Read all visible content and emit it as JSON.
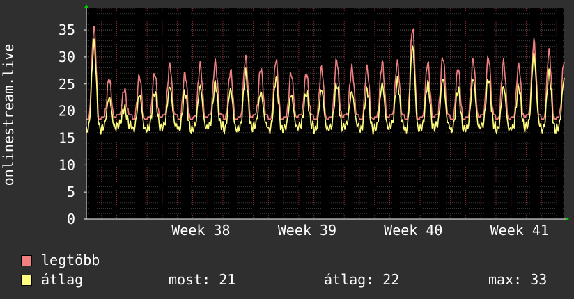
{
  "colors": {
    "background": "#2f2f2f",
    "plot_background": "#000000",
    "grid_major": "#5a5a5a",
    "grid_minor": "#3a3a3a",
    "vertical_grid": "#b03a3a",
    "axis": "#ffffff",
    "arrow": "#00cc00",
    "series_max": "#f08080",
    "series_avg": "#ffff80"
  },
  "legend": {
    "max_label": "legtöbb",
    "avg_label": "átlag"
  },
  "stats": {
    "now": "most: 21",
    "avg": "átlag: 22",
    "max": "max: 33"
  },
  "chart_data": {
    "type": "line",
    "ylabel": "onlinestream.live",
    "ylim": [
      0,
      39
    ],
    "yticks": [
      0,
      5,
      10,
      15,
      20,
      25,
      30,
      35
    ],
    "xlim": [
      0,
      31.5
    ],
    "xticks": [
      {
        "label": "Week 38",
        "x": 7
      },
      {
        "label": "Week 39",
        "x": 14
      },
      {
        "label": "Week 40",
        "x": 21
      },
      {
        "label": "Week 41",
        "x": 28
      }
    ],
    "grid": true,
    "x_unit": "days",
    "day_peaks": [
      {
        "max": 35.5,
        "avg": 32.5
      },
      {
        "max": 26,
        "avg": 22.5
      },
      {
        "max": 24,
        "avg": 20.5
      },
      {
        "max": 26.5,
        "avg": 23
      },
      {
        "max": 27,
        "avg": 23.5
      },
      {
        "max": 28.5,
        "avg": 24.5
      },
      {
        "max": 27,
        "avg": 23.5
      },
      {
        "max": 28.5,
        "avg": 24.5
      },
      {
        "max": 29,
        "avg": 25
      },
      {
        "max": 27.5,
        "avg": 24
      },
      {
        "max": 30,
        "avg": 27
      },
      {
        "max": 28,
        "avg": 23.5
      },
      {
        "max": 29.5,
        "avg": 26
      },
      {
        "max": 27,
        "avg": 23
      },
      {
        "max": 27,
        "avg": 23.5
      },
      {
        "max": 28,
        "avg": 24
      },
      {
        "max": 29.5,
        "avg": 25
      },
      {
        "max": 28,
        "avg": 23.5
      },
      {
        "max": 28,
        "avg": 24
      },
      {
        "max": 29,
        "avg": 25
      },
      {
        "max": 29,
        "avg": 25.5
      },
      {
        "max": 35.5,
        "avg": 32
      },
      {
        "max": 29,
        "avg": 25
      },
      {
        "max": 30,
        "avg": 26
      },
      {
        "max": 28,
        "avg": 24
      },
      {
        "max": 29.5,
        "avg": 26
      },
      {
        "max": 30,
        "avg": 26
      },
      {
        "max": 29,
        "avg": 24.5
      },
      {
        "max": 28.5,
        "avg": 24.5
      },
      {
        "max": 33,
        "avg": 30.5
      },
      {
        "max": 31,
        "avg": 27
      },
      {
        "max": 29.5,
        "avg": 26
      }
    ],
    "night_min": {
      "max": 17.5,
      "avg": 16.5
    },
    "series": [
      {
        "name": "legtöbb",
        "color": "#f08080"
      },
      {
        "name": "átlag",
        "color": "#ffff80"
      }
    ]
  }
}
